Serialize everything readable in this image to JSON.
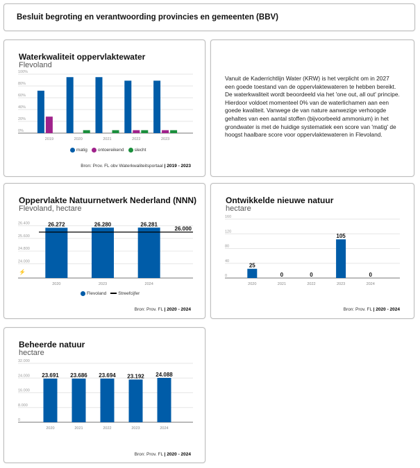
{
  "header": {
    "title": "Besluit begroting en verantwoording provincies en gemeenten (BBV)"
  },
  "colors": {
    "matig": "#005ca8",
    "ontoereikend": "#a0228b",
    "slecht": "#1a8f3c",
    "bar": "#005ca8",
    "target": "#000000"
  },
  "info_text": "Vanuit de Kaderrichtlijn Water (KRW) is het verplicht om in 2027 een goede toestand van de oppervlaktewateren te hebben bereikt. De waterkwaliteit wordt beoordeeld via het 'one out, all out' principe. Hierdoor voldoet momenteel 0% van de waterlichamen aan een goede kwaliteit. Vanwege de van nature aanwezige verhoogde gehaltes van een aantal stoffen (bijvoorbeeld ammonium) in het grondwater is met de huidige systematiek een score van 'matig' de hoogst haalbare score voor oppervlaktewateren in Flevoland.",
  "chart_data": [
    {
      "type": "bar",
      "title": "Waterkwaliteit oppervlaktewater",
      "subtitle": "Flevoland",
      "categories": [
        "2019",
        "2020",
        "2021",
        "2022",
        "2023"
      ],
      "series": [
        {
          "name": "matig",
          "values": [
            72,
            95,
            95,
            89,
            89
          ]
        },
        {
          "name": "ontoereikend",
          "values": [
            28,
            0,
            0,
            5,
            5
          ]
        },
        {
          "name": "slecht",
          "values": [
            0,
            5,
            5,
            5,
            5
          ]
        }
      ],
      "yticks": [
        "0%",
        "20%",
        "40%",
        "60%",
        "80%",
        "100%"
      ],
      "ylim": [
        0,
        100
      ],
      "grid": true,
      "legend": "bottom",
      "source": "Bron: Prov. FL obv Waterkwaliteitsportaal",
      "period": "2019 - 2023"
    },
    {
      "type": "bar",
      "title": "Oppervlakte Natuurnetwerk Nederland (NNN)",
      "subtitle": "Flevoland, hectare",
      "categories": [
        "2020",
        "2023",
        "2024"
      ],
      "series": [
        {
          "name": "Flevoland",
          "values": [
            26272,
            26280,
            26281
          ]
        }
      ],
      "data_labels": [
        "26.272",
        "26.280",
        "26.281"
      ],
      "target": {
        "name": "Streefcijfer",
        "value": 26000,
        "label": "26.000"
      },
      "yticks": [
        "24.000",
        "24.800",
        "25.600",
        "26.400"
      ],
      "ytick_values": [
        24000,
        24800,
        25600,
        26400
      ],
      "ylim": [
        23100,
        26600
      ],
      "axis_break": true,
      "grid": true,
      "legend": "bottom",
      "source": "Bron: Prov. FL",
      "period": "2020 - 2024"
    },
    {
      "type": "bar",
      "title": "Ontwikkelde nieuwe natuur",
      "subtitle": "hectare",
      "categories": [
        "2020",
        "2021",
        "2022",
        "2023",
        "2024"
      ],
      "series": [
        {
          "values": [
            25,
            0,
            0,
            105,
            0
          ]
        }
      ],
      "data_labels": [
        "25",
        "0",
        "0",
        "105",
        "0"
      ],
      "yticks": [
        "0",
        "40",
        "80",
        "120",
        "160"
      ],
      "ylim": [
        0,
        160
      ],
      "grid": true,
      "source": "Bron: Prov. FL",
      "period": "2020 - 2024"
    },
    {
      "type": "bar",
      "title": "Beheerde natuur",
      "subtitle": "hectare",
      "categories": [
        "2020",
        "2021",
        "2022",
        "2023",
        "2024"
      ],
      "series": [
        {
          "values": [
            23691,
            23686,
            23694,
            23192,
            24088
          ]
        }
      ],
      "data_labels": [
        "23.691",
        "23.686",
        "23.694",
        "23.192",
        "24.088"
      ],
      "yticks": [
        "0",
        "8.000",
        "16.000",
        "24.000",
        "32.000"
      ],
      "ylim": [
        0,
        32000
      ],
      "grid": true,
      "source": "Bron: Prov. FL",
      "period": "2020 - 2024"
    }
  ]
}
